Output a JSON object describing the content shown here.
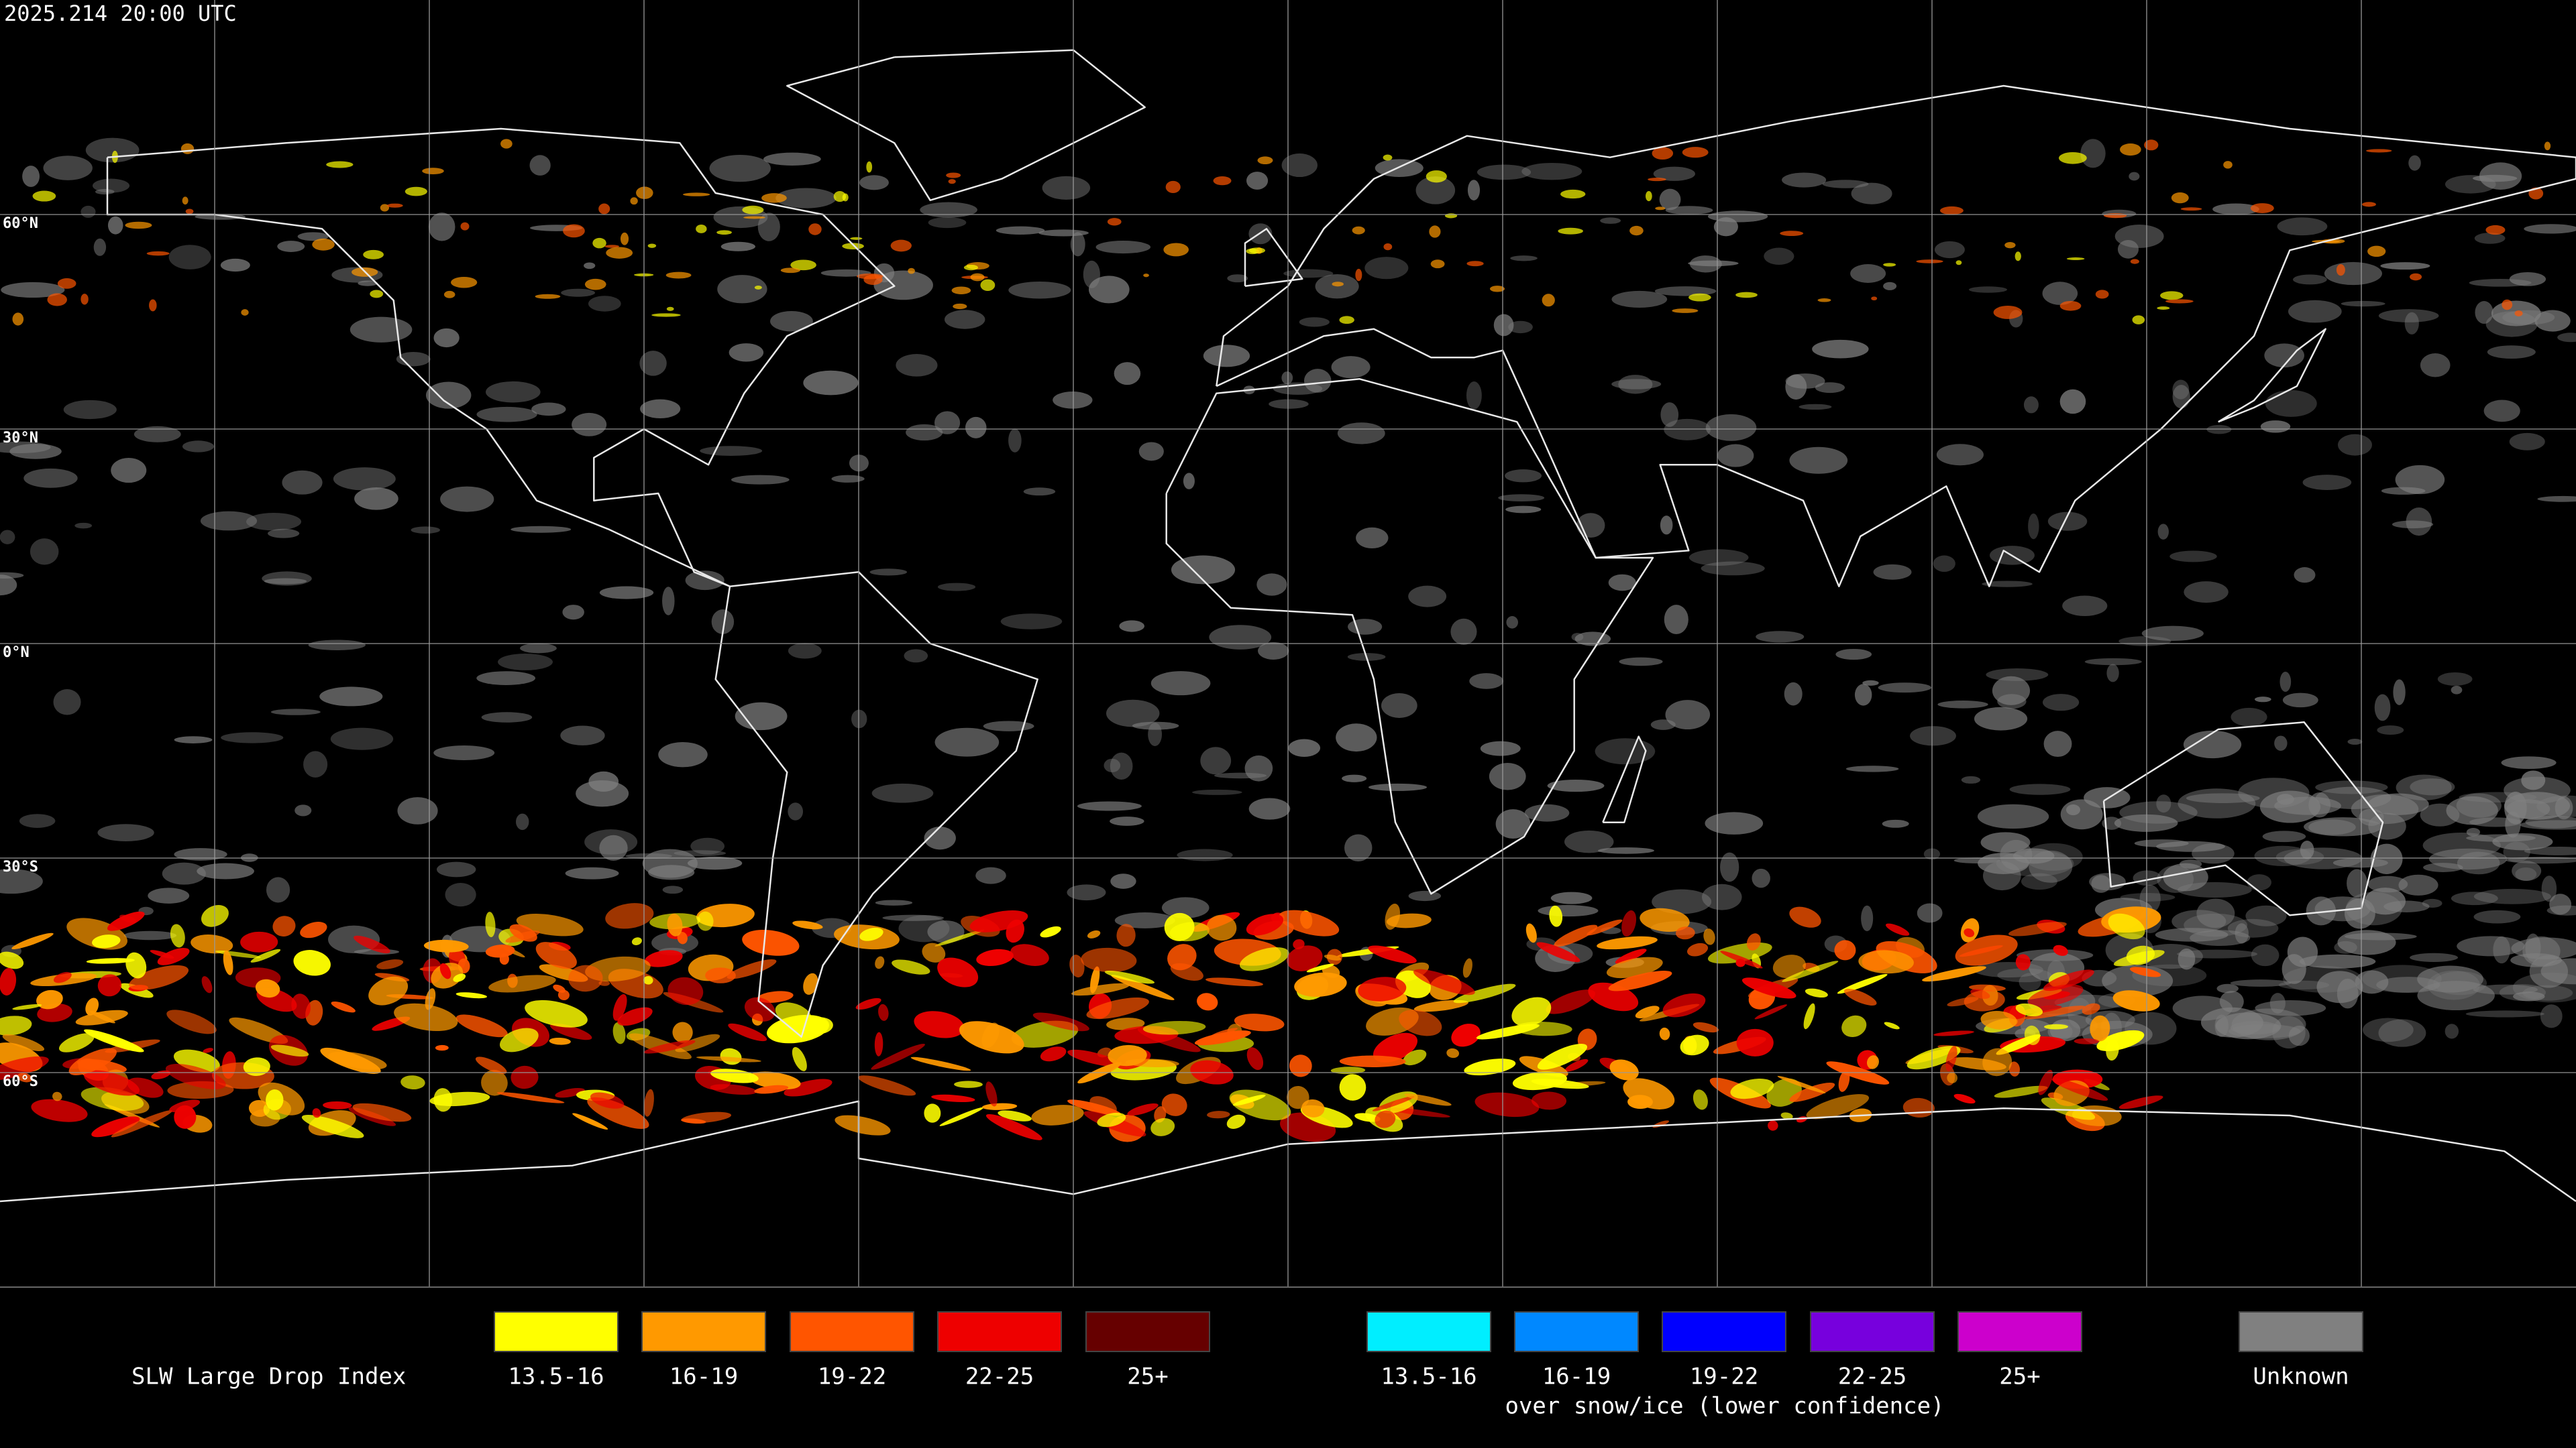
{
  "header": {
    "timestamp": "2025.214 20:00 UTC"
  },
  "map": {
    "lat_labels": [
      "60°N",
      "30°N",
      "0°N",
      "30°S",
      "60°S"
    ]
  },
  "legend": {
    "title": "SLW Large Drop Index",
    "items": [
      {
        "label": "13.5-16",
        "color": "#ffff00"
      },
      {
        "label": "16-19",
        "color": "#ff9900"
      },
      {
        "label": "19-22",
        "color": "#ff5500"
      },
      {
        "label": "22-25",
        "color": "#ee0000"
      },
      {
        "label": "25+",
        "color": "#660000"
      }
    ],
    "snow_items": [
      {
        "label": "13.5-16",
        "color": "#00eeff"
      },
      {
        "label": "16-19",
        "color": "#0088ff"
      },
      {
        "label": "19-22",
        "color": "#0000ff"
      },
      {
        "label": "22-25",
        "color": "#7700dd"
      },
      {
        "label": "25+",
        "color": "#cc00cc"
      }
    ],
    "snow_caption": "over snow/ice (lower confidence)",
    "unknown": {
      "label": "Unknown",
      "color": "#808080"
    }
  }
}
